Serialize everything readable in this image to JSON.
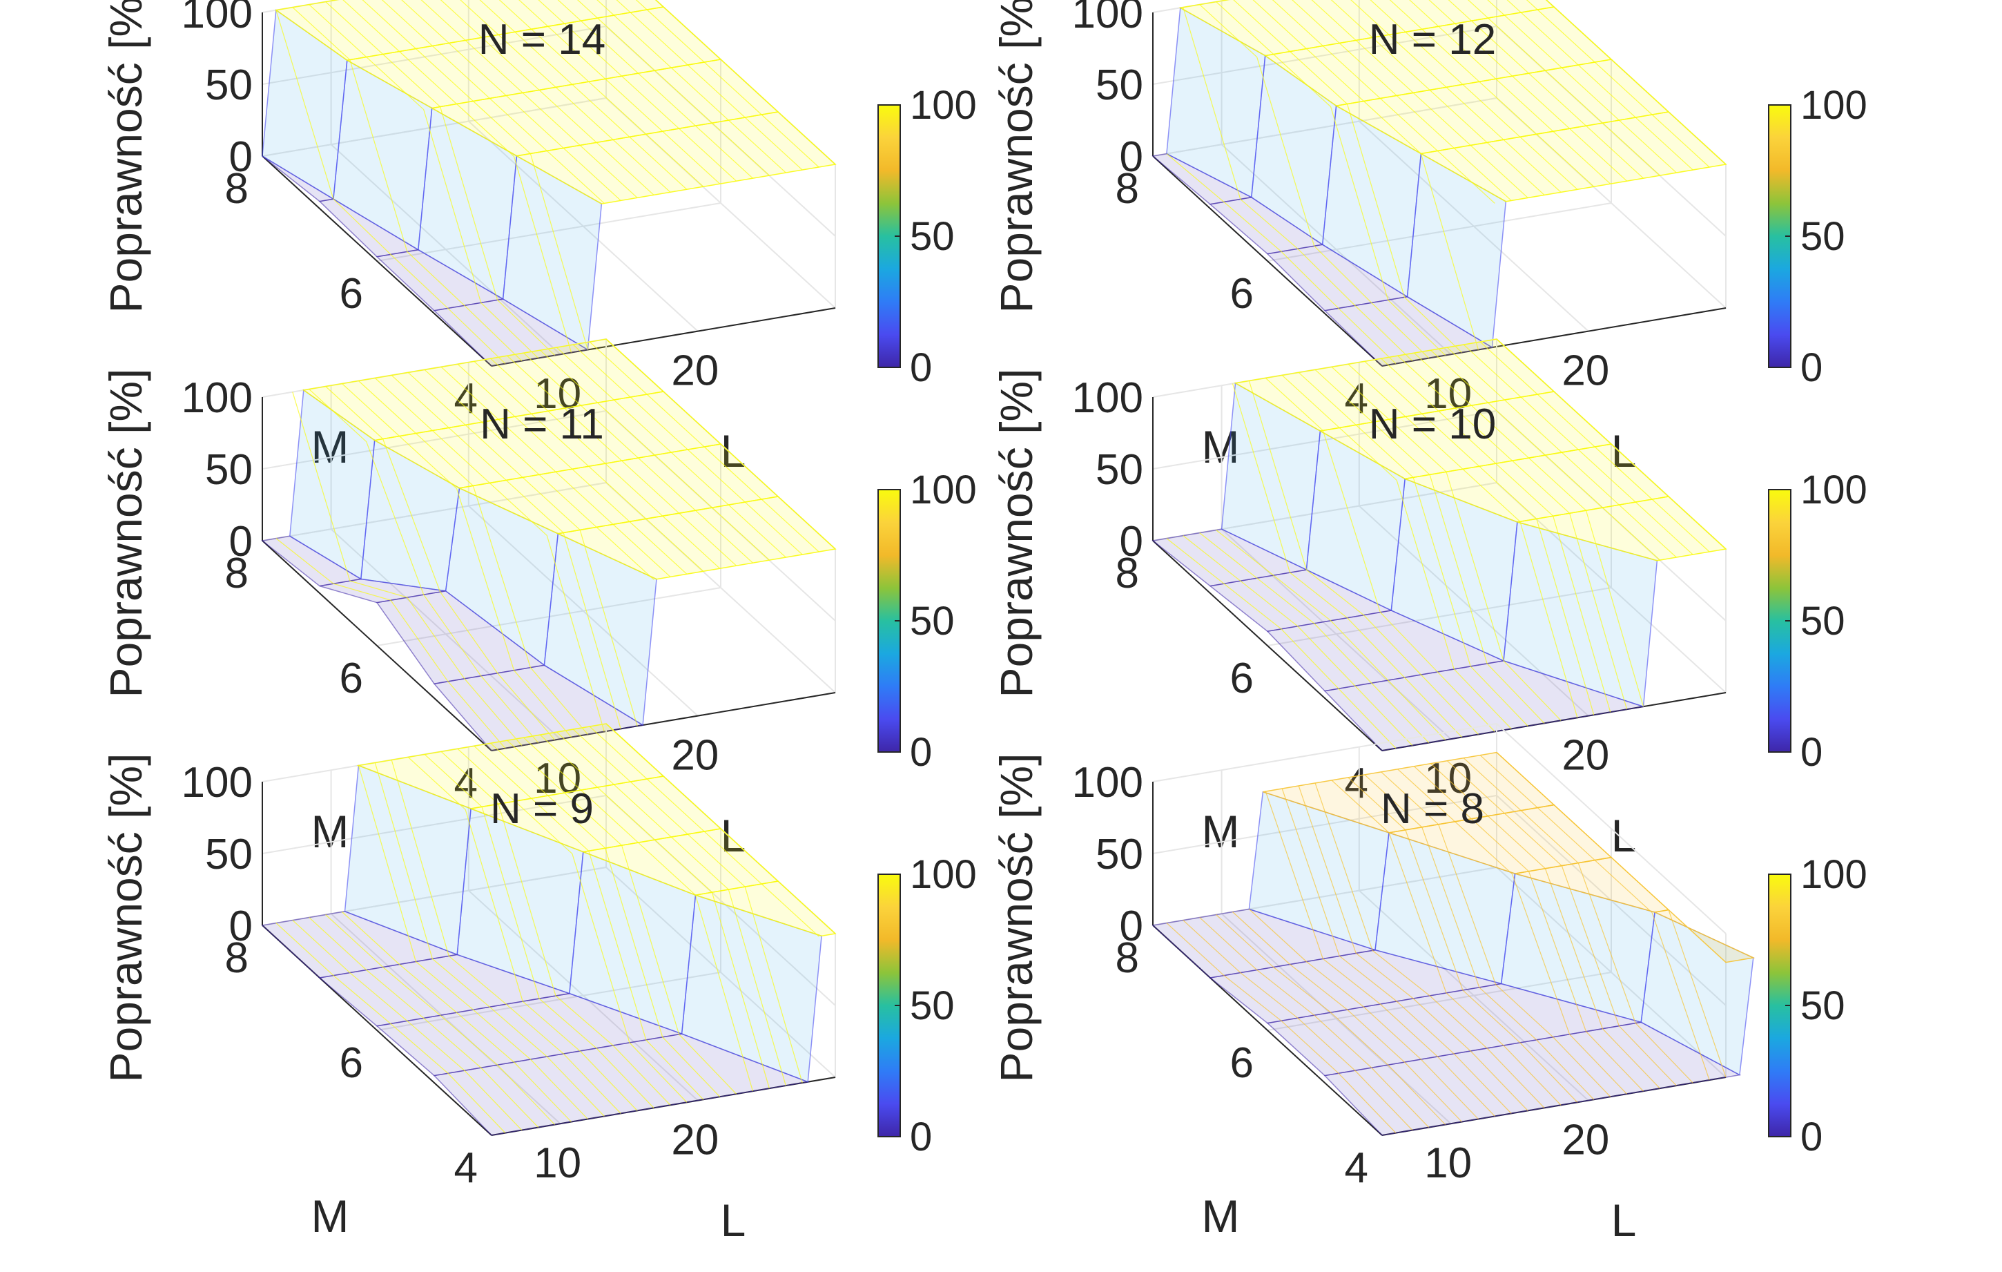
{
  "figure": {
    "rows": 3,
    "cols": 2
  },
  "colormap": [
    "#3e26a8",
    "#4a4bf0",
    "#2f7cf6",
    "#1ba8e0",
    "#28c0a0",
    "#8dc43a",
    "#f2b92a",
    "#fbd33b",
    "#f9fb0e"
  ],
  "chart_data": [
    {
      "type": "surface",
      "title": "N = 14",
      "xlabel": "L",
      "ylabel": "M",
      "zlabel": "Poprawność [%]",
      "x_ticks": [
        "10",
        "20"
      ],
      "y_ticks": [
        "8",
        "6",
        "4"
      ],
      "z_ticks": [
        "0",
        "50",
        "100"
      ],
      "colorbar_ticks": [
        "0",
        "50",
        "100"
      ],
      "xlim": [
        5,
        30
      ],
      "ylim": [
        4,
        8
      ],
      "zlim": [
        0,
        100
      ],
      "M": [
        8,
        7,
        6,
        5,
        4
      ],
      "L": [
        5,
        30
      ],
      "threshold_L": [
        5,
        6,
        8,
        10,
        12
      ],
      "low_values": [
        0,
        5,
        3,
        2,
        0
      ],
      "high_value": 100
    },
    {
      "type": "surface",
      "title": "N = 12",
      "xlabel": "L",
      "ylabel": "M",
      "zlabel": "Poprawność [%]",
      "x_ticks": [
        "10",
        "20"
      ],
      "y_ticks": [
        "8",
        "6",
        "4"
      ],
      "z_ticks": [
        "0",
        "50",
        "100"
      ],
      "colorbar_ticks": [
        "0",
        "50",
        "100"
      ],
      "xlim": [
        5,
        30
      ],
      "ylim": [
        4,
        8
      ],
      "zlim": [
        0,
        100
      ],
      "M": [
        8,
        7,
        6,
        5,
        4
      ],
      "L": [
        5,
        30
      ],
      "threshold_L": [
        6,
        8,
        9,
        11,
        13
      ],
      "low_values": [
        0,
        3,
        5,
        2,
        0
      ],
      "high_value": 100
    },
    {
      "type": "surface",
      "title": "N = 11",
      "xlabel": "L",
      "ylabel": "M",
      "zlabel": "Poprawność [%]",
      "x_ticks": [
        "10",
        "20"
      ],
      "y_ticks": [
        "8",
        "6",
        "4"
      ],
      "z_ticks": [
        "0",
        "50",
        "100"
      ],
      "colorbar_ticks": [
        "0",
        "50",
        "100"
      ],
      "xlim": [
        5,
        30
      ],
      "ylim": [
        4,
        8
      ],
      "zlim": [
        0,
        100
      ],
      "M": [
        8,
        7,
        6,
        5,
        4
      ],
      "L": [
        5,
        30
      ],
      "threshold_L": [
        7,
        8,
        10,
        13,
        16
      ],
      "low_values": [
        0,
        5,
        30,
        10,
        0
      ],
      "high_value": 100
    },
    {
      "type": "surface",
      "title": "N = 10",
      "xlabel": "L",
      "ylabel": "M",
      "zlabel": "Poprawność [%]",
      "x_ticks": [
        "10",
        "20"
      ],
      "y_ticks": [
        "8",
        "6",
        "4"
      ],
      "z_ticks": [
        "0",
        "50",
        "100"
      ],
      "colorbar_ticks": [
        "0",
        "50",
        "100"
      ],
      "xlim": [
        5,
        30
      ],
      "ylim": [
        4,
        8
      ],
      "zlim": [
        0,
        100
      ],
      "M": [
        8,
        7,
        6,
        5,
        4
      ],
      "L": [
        5,
        30
      ],
      "threshold_L": [
        10,
        12,
        14,
        18,
        24
      ],
      "low_values": [
        0,
        5,
        10,
        5,
        0
      ],
      "high_value": 100
    },
    {
      "type": "surface",
      "title": "N = 9",
      "xlabel": "L",
      "ylabel": "M",
      "zlabel": "Poprawność [%]",
      "x_ticks": [
        "10",
        "20"
      ],
      "y_ticks": [
        "8",
        "6",
        "4"
      ],
      "z_ticks": [
        "0",
        "50",
        "100"
      ],
      "colorbar_ticks": [
        "0",
        "50",
        "100"
      ],
      "xlim": [
        5,
        30
      ],
      "ylim": [
        4,
        8
      ],
      "zlim": [
        0,
        100
      ],
      "M": [
        8,
        7,
        6,
        5,
        4
      ],
      "L": [
        5,
        30
      ],
      "threshold_L": [
        11,
        15,
        19,
        23,
        28
      ],
      "low_values": [
        0,
        0,
        3,
        5,
        0
      ],
      "high_value": 100
    },
    {
      "type": "surface",
      "title": "N = 8",
      "xlabel": "L",
      "ylabel": "M",
      "zlabel": "Poprawność [%]",
      "x_ticks": [
        "10",
        "20"
      ],
      "y_ticks": [
        "8",
        "6",
        "4"
      ],
      "z_ticks": [
        "0",
        "50",
        "100"
      ],
      "colorbar_ticks": [
        "0",
        "50",
        "100"
      ],
      "xlim": [
        5,
        30
      ],
      "ylim": [
        4,
        8
      ],
      "zlim": [
        0,
        100
      ],
      "M": [
        8,
        7,
        6,
        5,
        4
      ],
      "L": [
        5,
        30
      ],
      "threshold_L": [
        12,
        17,
        22,
        28,
        31
      ],
      "low_values": [
        0,
        0,
        5,
        5,
        0
      ],
      "high_value": 80
    }
  ]
}
